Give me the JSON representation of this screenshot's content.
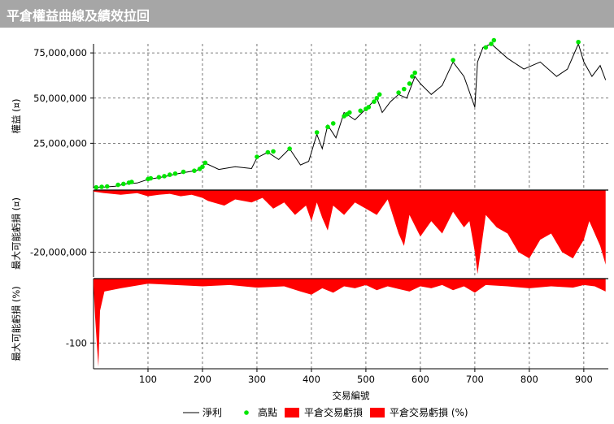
{
  "title": "平倉權益曲線及績效拉回",
  "chart_data": [
    {
      "type": "line",
      "panel": "equity",
      "ylabel": "權益 (¤)",
      "yticks": [
        "75,000,000",
        "50,000,000",
        "25,000,000"
      ],
      "ytick_values": [
        75000000,
        50000000,
        25000000
      ],
      "ylim": [
        0,
        80000000
      ],
      "series": [
        {
          "name": "淨利",
          "color": "#000000",
          "x": [
            0,
            20,
            40,
            60,
            80,
            100,
            130,
            160,
            190,
            205,
            230,
            260,
            290,
            300,
            320,
            340,
            360,
            380,
            395,
            410,
            420,
            430,
            445,
            460,
            480,
            500,
            520,
            530,
            545,
            560,
            575,
            590,
            600,
            620,
            640,
            660,
            680,
            700,
            705,
            715,
            730,
            760,
            790,
            820,
            850,
            870,
            890,
            900,
            915,
            930,
            940
          ],
          "y": [
            500000,
            800000,
            1200000,
            2500000,
            3000000,
            5000000,
            6500000,
            8500000,
            10000000,
            14000000,
            10500000,
            12000000,
            11000000,
            17000000,
            20000000,
            16000000,
            22000000,
            13000000,
            15000000,
            30000000,
            22000000,
            35000000,
            28000000,
            42000000,
            38000000,
            44000000,
            50000000,
            42000000,
            48000000,
            52000000,
            50000000,
            62000000,
            58000000,
            52000000,
            57000000,
            70000000,
            62000000,
            45000000,
            70000000,
            78000000,
            80000000,
            72000000,
            66000000,
            70000000,
            62000000,
            66000000,
            80000000,
            70000000,
            62000000,
            68000000,
            60000000
          ]
        },
        {
          "name": "高點",
          "color": "#00e600",
          "type": "scatter",
          "x": [
            5,
            15,
            25,
            45,
            55,
            65,
            70,
            100,
            105,
            120,
            130,
            140,
            150,
            165,
            185,
            195,
            200,
            205,
            300,
            320,
            330,
            360,
            410,
            430,
            440,
            460,
            465,
            470,
            490,
            500,
            505,
            515,
            520,
            525,
            560,
            570,
            580,
            585,
            590,
            660,
            720,
            730,
            735,
            890
          ],
          "y": [
            600000,
            900000,
            1100000,
            2000000,
            2500000,
            3200000,
            3600000,
            5200000,
            5600000,
            6200000,
            6800000,
            7600000,
            8200000,
            9200000,
            9800000,
            10800000,
            12000000,
            14200000,
            17500000,
            20000000,
            20500000,
            22000000,
            31000000,
            34000000,
            36000000,
            40000000,
            41000000,
            42000000,
            43000000,
            44000000,
            45000000,
            48000000,
            50000000,
            52000000,
            53000000,
            55000000,
            58000000,
            62000000,
            64000000,
            71000000,
            78000000,
            80000000,
            82000000,
            81000000
          ]
        }
      ]
    },
    {
      "type": "area",
      "panel": "drawdown_abs",
      "ylabel": "最大可能虧損 (¤)",
      "yticks": [
        "-20,000,000"
      ],
      "ytick_values": [
        -20000000
      ],
      "ylim": [
        -28000000,
        0
      ],
      "series": [
        {
          "name": "平倉交易虧損",
          "color": "#ff0000",
          "x": [
            0,
            20,
            50,
            80,
            100,
            120,
            140,
            160,
            180,
            200,
            210,
            240,
            260,
            290,
            310,
            330,
            350,
            370,
            390,
            400,
            410,
            420,
            430,
            440,
            460,
            480,
            500,
            520,
            540,
            560,
            570,
            580,
            600,
            620,
            640,
            660,
            680,
            690,
            700,
            705,
            720,
            740,
            760,
            780,
            800,
            820,
            840,
            860,
            880,
            900,
            910,
            920,
            930,
            940
          ],
          "y": [
            -500000,
            -1000000,
            -1500000,
            -1000000,
            -2000000,
            -1500000,
            -1200000,
            -2000000,
            -1500000,
            -2500000,
            -3500000,
            -5000000,
            -3000000,
            -4000000,
            -2500000,
            -6000000,
            -4000000,
            -8000000,
            -5000000,
            -10000000,
            -4000000,
            -9000000,
            -13000000,
            -5000000,
            -8000000,
            -4000000,
            -6000000,
            -8000000,
            -3000000,
            -14000000,
            -18000000,
            -8000000,
            -15000000,
            -10000000,
            -14000000,
            -7000000,
            -12000000,
            -10000000,
            -20000000,
            -27000000,
            -8000000,
            -12000000,
            -14000000,
            -20000000,
            -22000000,
            -16000000,
            -14000000,
            -20000000,
            -22000000,
            -16000000,
            -10000000,
            -14000000,
            -18000000,
            -24000000
          ]
        }
      ]
    },
    {
      "type": "area",
      "panel": "drawdown_pct",
      "ylabel": "最大可能虧損 (%)",
      "yticks": [
        "-100"
      ],
      "ytick_values": [
        -100
      ],
      "ylim": [
        -140,
        0
      ],
      "series": [
        {
          "name": "平倉交易虧損 (%)",
          "color": "#ff0000",
          "x": [
            0,
            3,
            6,
            9,
            12,
            20,
            50,
            100,
            150,
            200,
            250,
            300,
            350,
            380,
            400,
            420,
            440,
            460,
            480,
            500,
            520,
            540,
            560,
            580,
            600,
            620,
            640,
            660,
            680,
            700,
            720,
            760,
            800,
            840,
            880,
            900,
            920,
            940
          ],
          "y": [
            -10,
            -60,
            -100,
            -137,
            -50,
            -20,
            -15,
            -8,
            -10,
            -12,
            -10,
            -14,
            -12,
            -20,
            -25,
            -15,
            -22,
            -12,
            -15,
            -10,
            -18,
            -12,
            -16,
            -20,
            -12,
            -15,
            -10,
            -18,
            -12,
            -22,
            -10,
            -12,
            -15,
            -12,
            -14,
            -10,
            -12,
            -20
          ]
        }
      ]
    }
  ],
  "xaxis": {
    "label": "交易編號",
    "ticks": [
      "100",
      "200",
      "300",
      "400",
      "500",
      "600",
      "700",
      "800",
      "900"
    ],
    "tick_values": [
      100,
      200,
      300,
      400,
      500,
      600,
      700,
      800,
      900
    ],
    "xlim": [
      0,
      945
    ]
  },
  "legend": {
    "placement": "bottom",
    "items": [
      {
        "label": "淨利",
        "kind": "line",
        "color": "#000000"
      },
      {
        "label": "高點",
        "kind": "marker",
        "color": "#00e600"
      },
      {
        "label": "平倉交易虧損",
        "kind": "box",
        "color": "#ff0000"
      },
      {
        "label": "平倉交易虧損 (%)",
        "kind": "box",
        "color": "#ff0000"
      }
    ]
  }
}
